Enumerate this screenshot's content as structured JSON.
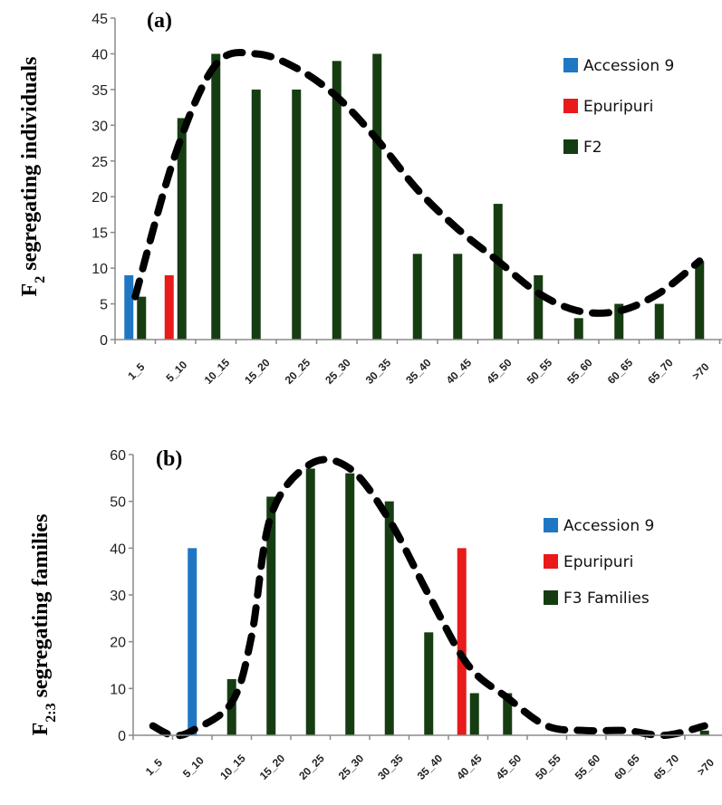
{
  "chart_data": [
    {
      "type": "bar",
      "panel_label": "(a)",
      "ylabel": {
        "main": "F",
        "sub": "2",
        "rest": " segregating individuals"
      },
      "ylim": [
        0,
        45
      ],
      "yticks": [
        "0",
        "5",
        "10",
        "15",
        "20",
        "25",
        "30",
        "35",
        "40",
        "45"
      ],
      "categories": [
        "1_5",
        "5_10",
        "10_15",
        "15_20",
        "20_25",
        "25_30",
        "30_35",
        "35_40",
        "40_45",
        "45_50",
        "50_55",
        "55_60",
        "60_65",
        "65_70",
        ">70"
      ],
      "series": [
        {
          "name": "Accession 9",
          "color": "#1f77c4",
          "values": [
            9,
            null,
            null,
            null,
            null,
            null,
            null,
            null,
            null,
            null,
            null,
            null,
            null,
            null,
            null
          ]
        },
        {
          "name": "Epuripuri",
          "color": "#e81a1a",
          "values": [
            null,
            9,
            null,
            null,
            null,
            null,
            null,
            null,
            null,
            null,
            null,
            null,
            null,
            null,
            null
          ]
        },
        {
          "name": "F2",
          "color": "#163d12",
          "values": [
            6,
            31,
            40,
            35,
            35,
            39,
            40,
            12,
            12,
            19,
            9,
            3,
            5,
            5,
            11
          ]
        }
      ],
      "trend": {
        "style": "dashed",
        "color": "#000000",
        "points": [
          [
            0,
            6
          ],
          [
            1,
            26
          ],
          [
            2,
            38.5
          ],
          [
            3,
            40
          ],
          [
            4,
            38
          ],
          [
            5,
            34
          ],
          [
            6,
            28
          ],
          [
            7,
            21
          ],
          [
            8,
            15.5
          ],
          [
            9,
            11
          ],
          [
            10,
            6.5
          ],
          [
            11,
            4
          ],
          [
            12,
            4
          ],
          [
            13,
            6.5
          ],
          [
            14,
            11
          ]
        ]
      },
      "legend_position": "top-right"
    },
    {
      "type": "bar",
      "panel_label": "(b)",
      "ylabel": {
        "main": "F",
        "sub": "2:3",
        "rest": " segregating families"
      },
      "ylim": [
        0,
        60
      ],
      "yticks": [
        "0",
        "10",
        "20",
        "30",
        "40",
        "50",
        "60"
      ],
      "categories": [
        "1_5",
        "5_10",
        "10_15",
        "15_20",
        "20_25",
        "25_30",
        "30_35",
        "35_40",
        "40_45",
        "45_50",
        "50_55",
        "55_60",
        "60_65",
        "65_70",
        ">70"
      ],
      "series": [
        {
          "name": "Accession 9",
          "color": "#1f77c4",
          "values": [
            null,
            40,
            null,
            null,
            null,
            null,
            null,
            null,
            null,
            null,
            null,
            null,
            null,
            null,
            null
          ]
        },
        {
          "name": "Epuripuri",
          "color": "#e81a1a",
          "values": [
            null,
            null,
            null,
            null,
            null,
            null,
            null,
            null,
            40,
            null,
            null,
            null,
            null,
            null,
            null
          ]
        },
        {
          "name": "F3 Families",
          "color": "#163d12",
          "values": [
            null,
            null,
            12,
            51,
            57,
            56,
            50,
            22,
            9,
            9,
            null,
            null,
            null,
            null,
            1
          ]
        }
      ],
      "trend": {
        "style": "dashed",
        "color": "#000000",
        "points": [
          [
            0,
            2
          ],
          [
            0.5,
            0
          ],
          [
            1,
            1
          ],
          [
            2,
            7
          ],
          [
            2.5,
            21
          ],
          [
            3,
            47
          ],
          [
            4,
            58
          ],
          [
            5,
            57
          ],
          [
            6,
            46
          ],
          [
            7,
            30
          ],
          [
            8,
            15
          ],
          [
            9,
            8
          ],
          [
            10,
            2
          ],
          [
            11,
            1
          ],
          [
            12,
            1
          ],
          [
            13,
            0
          ],
          [
            14,
            2
          ]
        ]
      },
      "legend_position": "right"
    }
  ]
}
